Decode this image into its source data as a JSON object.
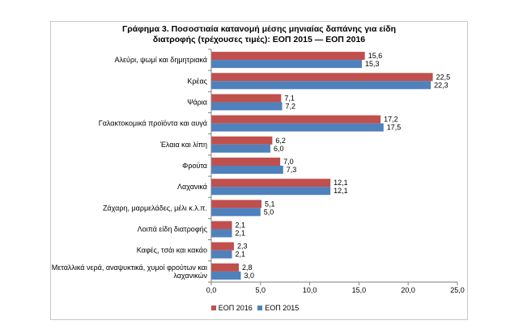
{
  "chart_data": {
    "type": "bar",
    "orientation": "horizontal",
    "title_line1": "Γράφημα 3.  Ποσοστιαία κατανομή μέσης μηνιαίας δαπάνης για είδη",
    "title_line2": "διατροφής (τρέχουσες τιμές): ΕΟΠ 2015 — ΕΟΠ 2016",
    "categories": [
      [
        "Αλεύρι, ψωμί και δημητριακά"
      ],
      [
        "Κρέας"
      ],
      [
        "Ψάρια"
      ],
      [
        "Γαλακτοκομικά προϊόντα και αυγά"
      ],
      [
        "Έλαια και λίπη"
      ],
      [
        "Φρούτα"
      ],
      [
        "Λαχανικά"
      ],
      [
        "Ζάχαρη, μαρμελάδες, μέλι κ.λ.π."
      ],
      [
        "Λοιπά είδη διατροφής"
      ],
      [
        "Καφές, τσάι και κακάο"
      ],
      [
        "Μεταλλικά νερά, αναψυκτικά, χυμοί φρούτων και",
        "λαχανικών"
      ]
    ],
    "series": [
      {
        "name": "ΕΟΠ 2016",
        "color": "#c0504d",
        "values": [
          15.6,
          22.5,
          7.1,
          17.2,
          6.2,
          7.0,
          12.1,
          5.1,
          2.1,
          2.3,
          2.8
        ],
        "labels": [
          "15,6",
          "22,5",
          "7,1",
          "17,2",
          "6,2",
          "7,0",
          "12,1",
          "5,1",
          "2,1",
          "2,3",
          "2,8"
        ]
      },
      {
        "name": "ΕΟΠ 2015",
        "color": "#4f81bd",
        "values": [
          15.3,
          22.3,
          7.2,
          17.5,
          6.0,
          7.3,
          12.1,
          5.0,
          2.1,
          2.1,
          3.0
        ],
        "labels": [
          "15,3",
          "22,3",
          "7,2",
          "17,5",
          "6,0",
          "7,3",
          "12,1",
          "5,0",
          "2,1",
          "2,1",
          "3,0"
        ]
      }
    ],
    "xlim": [
      0,
      25
    ],
    "xticks": [
      0,
      5,
      10,
      15,
      20,
      25
    ],
    "xtick_labels": [
      "0,0",
      "5,0",
      "10,0",
      "15,0",
      "20,0",
      "25,0"
    ],
    "grid": false,
    "legend_position": "bottom"
  }
}
